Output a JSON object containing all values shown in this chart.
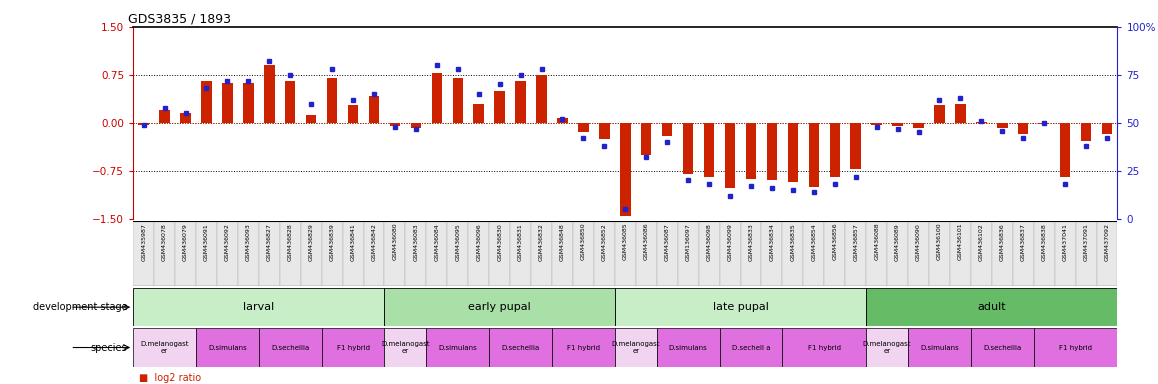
{
  "title": "GDS3835 / 1893",
  "ylim_left": [
    -1.5,
    1.5
  ],
  "ylim_right": [
    0,
    100
  ],
  "yticks_left": [
    -1.5,
    -0.75,
    0,
    0.75,
    1.5
  ],
  "yticks_right": [
    0,
    25,
    50,
    75,
    100
  ],
  "left_axis_color": "#cc0000",
  "right_axis_color": "#2222cc",
  "bar_color": "#cc2200",
  "dot_color": "#2222cc",
  "sample_ids": [
    "GSM435987",
    "GSM436078",
    "GSM436079",
    "GSM436091",
    "GSM436092",
    "GSM436093",
    "GSM436827",
    "GSM436828",
    "GSM436829",
    "GSM436839",
    "GSM436841",
    "GSM436842",
    "GSM436080",
    "GSM436083",
    "GSM436084",
    "GSM436095",
    "GSM436096",
    "GSM436830",
    "GSM436831",
    "GSM436832",
    "GSM436848",
    "GSM436850",
    "GSM436852",
    "GSM436085",
    "GSM436086",
    "GSM436087",
    "GSM136097",
    "GSM436098",
    "GSM436099",
    "GSM436833",
    "GSM436834",
    "GSM436835",
    "GSM436854",
    "GSM436856",
    "GSM436857",
    "GSM436088",
    "GSM436089",
    "GSM436090",
    "GSM436100",
    "GSM436101",
    "GSM436102",
    "GSM436836",
    "GSM436837",
    "GSM436838",
    "GSM437041",
    "GSM437091",
    "GSM437092"
  ],
  "log2_ratio": [
    -0.03,
    0.2,
    0.15,
    0.65,
    0.62,
    0.62,
    0.9,
    0.65,
    0.12,
    0.7,
    0.28,
    0.42,
    -0.05,
    -0.08,
    0.78,
    0.7,
    0.3,
    0.5,
    0.65,
    0.75,
    0.07,
    -0.15,
    -0.25,
    -1.45,
    -0.5,
    -0.2,
    -0.8,
    -0.85,
    -1.02,
    -0.88,
    -0.9,
    -0.92,
    -1.0,
    -0.85,
    -0.72,
    -0.03,
    -0.05,
    -0.08,
    0.28,
    0.3,
    0.02,
    -0.08,
    -0.18,
    -0.02,
    -0.85,
    -0.28,
    -0.18
  ],
  "percentile_rank": [
    49,
    58,
    55,
    68,
    72,
    72,
    82,
    75,
    60,
    78,
    62,
    65,
    48,
    47,
    80,
    78,
    65,
    70,
    75,
    78,
    52,
    42,
    38,
    5,
    32,
    40,
    20,
    18,
    12,
    17,
    16,
    15,
    14,
    18,
    22,
    48,
    47,
    45,
    62,
    63,
    51,
    46,
    42,
    50,
    18,
    38,
    42
  ],
  "dev_stages": [
    {
      "label": "larval",
      "start": 0,
      "end": 12,
      "color": "#d4f0d4"
    },
    {
      "label": "early pupal",
      "start": 12,
      "end": 23,
      "color": "#c0e8c0"
    },
    {
      "label": "late pupal",
      "start": 23,
      "end": 35,
      "color": "#d4f0d4"
    },
    {
      "label": "adult",
      "start": 35,
      "end": 47,
      "color": "#88cc88"
    }
  ],
  "species_groups": [
    {
      "label": "D.melanogast\ner",
      "start": 0,
      "end": 3,
      "color": "#f0d4f0"
    },
    {
      "label": "D.simulans",
      "start": 3,
      "end": 6,
      "color": "#e070e0"
    },
    {
      "label": "D.sechellia",
      "start": 6,
      "end": 9,
      "color": "#e070e0"
    },
    {
      "label": "F1 hybrid",
      "start": 9,
      "end": 12,
      "color": "#e070e0"
    },
    {
      "label": "D.melanogast\ner",
      "start": 12,
      "end": 14,
      "color": "#f0d4f0"
    },
    {
      "label": "D.simulans",
      "start": 14,
      "end": 17,
      "color": "#e070e0"
    },
    {
      "label": "D.sechellia",
      "start": 17,
      "end": 20,
      "color": "#e070e0"
    },
    {
      "label": "F1 hybrid",
      "start": 20,
      "end": 23,
      "color": "#e070e0"
    },
    {
      "label": "D.melanogast\ner",
      "start": 23,
      "end": 25,
      "color": "#f0d4f0"
    },
    {
      "label": "D.simulans",
      "start": 25,
      "end": 28,
      "color": "#e070e0"
    },
    {
      "label": "D.sechell a",
      "start": 28,
      "end": 31,
      "color": "#e070e0"
    },
    {
      "label": "F1 hybrid",
      "start": 31,
      "end": 35,
      "color": "#e070e0"
    },
    {
      "label": "D.melanogast\ner",
      "start": 35,
      "end": 37,
      "color": "#f0d4f0"
    },
    {
      "label": "D.simulans",
      "start": 37,
      "end": 40,
      "color": "#e070e0"
    },
    {
      "label": "D.sechellia",
      "start": 40,
      "end": 43,
      "color": "#e070e0"
    },
    {
      "label": "F1 hybrid",
      "start": 43,
      "end": 47,
      "color": "#e070e0"
    }
  ]
}
